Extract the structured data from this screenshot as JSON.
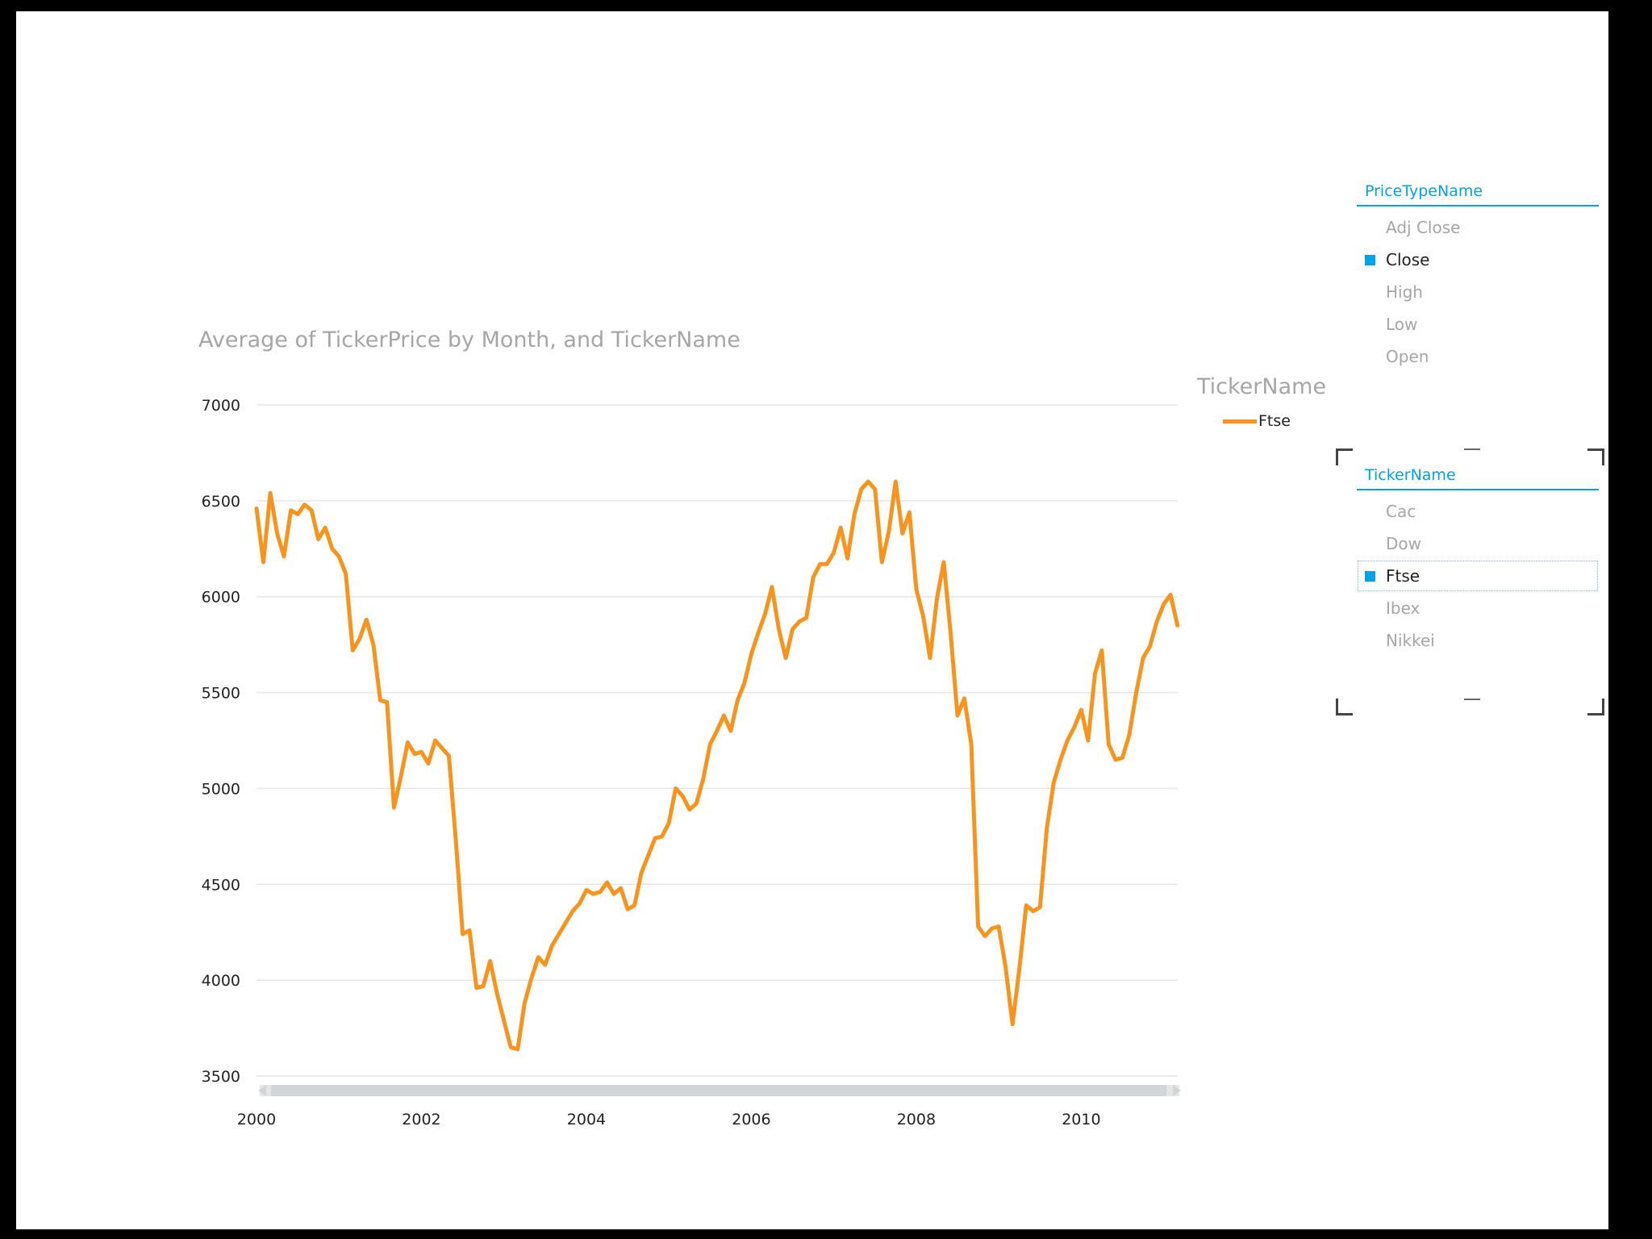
{
  "chart_data": {
    "type": "line",
    "title": "Average of TickerPrice by Month, and TickerName",
    "xlabel": "",
    "ylabel": "",
    "ylim": [
      3500,
      7000
    ],
    "yticks": [
      3500,
      4000,
      4500,
      5000,
      5500,
      6000,
      6500,
      7000
    ],
    "xlim": [
      2000,
      2011.17
    ],
    "xticks": [
      2000,
      2002,
      2004,
      2006,
      2008,
      2010
    ],
    "legend_title": "TickerName",
    "legend_position": "right",
    "grid": true,
    "series": [
      {
        "name": "Ftse",
        "color": "#f7941d",
        "x": [
          2000.0,
          2000.083,
          2000.167,
          2000.25,
          2000.333,
          2000.417,
          2000.5,
          2000.583,
          2000.667,
          2000.75,
          2000.833,
          2000.917,
          2001.0,
          2001.083,
          2001.167,
          2001.25,
          2001.333,
          2001.417,
          2001.5,
          2001.583,
          2001.667,
          2001.75,
          2001.833,
          2001.917,
          2002.0,
          2002.083,
          2002.167,
          2002.25,
          2002.333,
          2002.417,
          2002.5,
          2002.583,
          2002.667,
          2002.75,
          2002.833,
          2002.917,
          2003.0,
          2003.083,
          2003.167,
          2003.25,
          2003.333,
          2003.417,
          2003.5,
          2003.583,
          2003.667,
          2003.75,
          2003.833,
          2003.917,
          2004.0,
          2004.083,
          2004.167,
          2004.25,
          2004.333,
          2004.417,
          2004.5,
          2004.583,
          2004.667,
          2004.75,
          2004.833,
          2004.917,
          2005.0,
          2005.083,
          2005.167,
          2005.25,
          2005.333,
          2005.417,
          2005.5,
          2005.583,
          2005.667,
          2005.75,
          2005.833,
          2005.917,
          2006.0,
          2006.083,
          2006.167,
          2006.25,
          2006.333,
          2006.417,
          2006.5,
          2006.583,
          2006.667,
          2006.75,
          2006.833,
          2006.917,
          2007.0,
          2007.083,
          2007.167,
          2007.25,
          2007.333,
          2007.417,
          2007.5,
          2007.583,
          2007.667,
          2007.75,
          2007.833,
          2007.917,
          2008.0,
          2008.083,
          2008.167,
          2008.25,
          2008.333,
          2008.417,
          2008.5,
          2008.583,
          2008.667,
          2008.75,
          2008.833,
          2008.917,
          2009.0,
          2009.083,
          2009.167,
          2009.25,
          2009.333,
          2009.417,
          2009.5,
          2009.583,
          2009.667,
          2009.75,
          2009.833,
          2009.917,
          2010.0,
          2010.083,
          2010.167,
          2010.25,
          2010.333,
          2010.417,
          2010.5,
          2010.583,
          2010.667,
          2010.75,
          2010.833,
          2010.917,
          2011.0,
          2011.083,
          2011.167
        ],
        "values": [
          6460,
          6180,
          6540,
          6330,
          6210,
          6450,
          6430,
          6480,
          6450,
          6300,
          6360,
          6250,
          6210,
          6120,
          5720,
          5780,
          5880,
          5750,
          5460,
          5450,
          4900,
          5060,
          5240,
          5180,
          5190,
          5130,
          5250,
          5210,
          5170,
          4730,
          4240,
          4260,
          3960,
          3970,
          4100,
          3930,
          3790,
          3650,
          3640,
          3880,
          4010,
          4120,
          4080,
          4180,
          4240,
          4300,
          4360,
          4400,
          4470,
          4450,
          4460,
          4510,
          4450,
          4480,
          4370,
          4390,
          4560,
          4650,
          4740,
          4750,
          4820,
          5000,
          4960,
          4890,
          4920,
          5050,
          5230,
          5300,
          5380,
          5300,
          5460,
          5550,
          5700,
          5810,
          5910,
          6050,
          5830,
          5680,
          5830,
          5870,
          5890,
          6100,
          6170,
          6170,
          6230,
          6360,
          6200,
          6430,
          6560,
          6600,
          6560,
          6180,
          6340,
          6600,
          6330,
          6440,
          6040,
          5900,
          5680,
          5990,
          6180,
          5810,
          5380,
          5470,
          5230,
          4280,
          4230,
          4270,
          4280,
          4070,
          3770,
          4060,
          4390,
          4360,
          4380,
          4790,
          5030,
          5150,
          5250,
          5320,
          5410,
          5250,
          5600,
          5720,
          5230,
          5150,
          5160,
          5280,
          5500,
          5680,
          5740,
          5870,
          5960,
          6010,
          5850
        ]
      }
    ]
  },
  "slicers": {
    "price_type": {
      "header": "PriceTypeName",
      "items": [
        "Adj Close",
        "Close",
        "High",
        "Low",
        "Open"
      ],
      "selected": "Close"
    },
    "ticker": {
      "header": "TickerName",
      "items": [
        "Cac",
        "Dow",
        "Ftse",
        "Ibex",
        "Nikkei"
      ],
      "selected": "Ftse"
    }
  }
}
